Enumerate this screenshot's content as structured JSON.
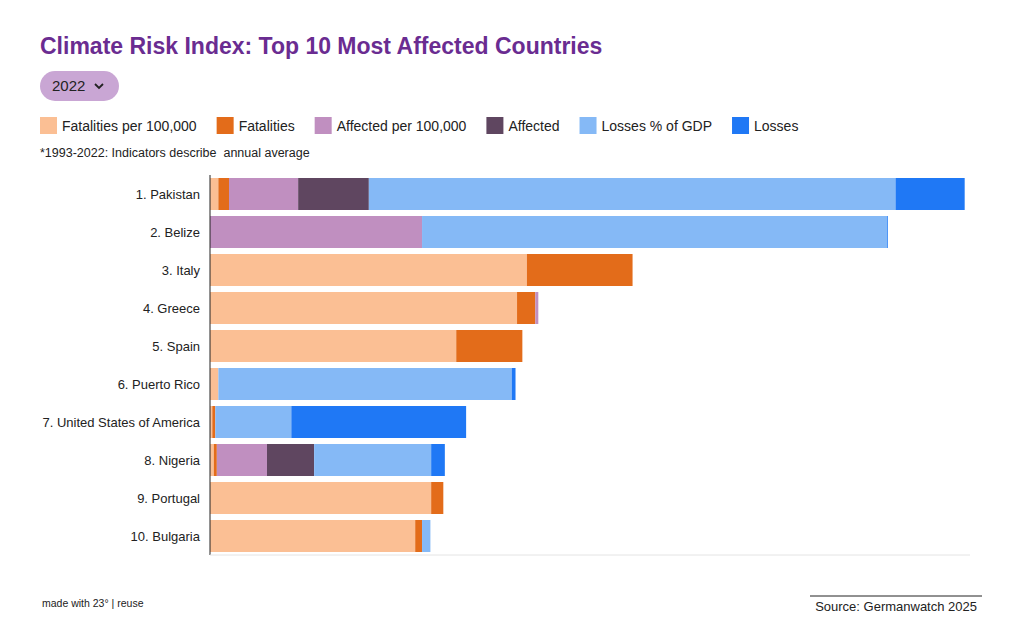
{
  "chart_data": {
    "type": "bar",
    "title": "Climate Risk Index: Top 10 Most Affected Countries",
    "dropdown": "2022",
    "note": "*1993-2022: Indicators describe  annual average",
    "footer": "made with 23° | reuse",
    "source": "Source: Germanwatch 2025",
    "orientation": "horizontal",
    "stacked": true,
    "legend": "top",
    "tick_labels": "y",
    "xlim": [
      0,
      100
    ],
    "categories": [
      "1. Pakistan",
      "2. Belize",
      "3. Italy",
      "4. Greece",
      "5. Spain",
      "6. Puerto Rico",
      "7. United States of America",
      "8. Nigeria",
      "9. Portugal",
      "10. Bulgaria"
    ],
    "series": [
      {
        "name": "Fatalities per 100,000",
        "color": "#fbbf94",
        "values": [
          1.1,
          0,
          41.7,
          40.4,
          32.4,
          1.1,
          0.3,
          0.5,
          29.1,
          27.0
        ]
      },
      {
        "name": "Fatalities",
        "color": "#e36c1a",
        "values": [
          1.4,
          0,
          13.9,
          2.4,
          8.7,
          0,
          0.4,
          0.4,
          1.6,
          0.9
        ]
      },
      {
        "name": "Affected per 100,000",
        "color": "#c08fc0",
        "values": [
          9.1,
          27.9,
          0,
          0.4,
          0,
          0,
          0,
          6.6,
          0,
          0
        ]
      },
      {
        "name": "Affected",
        "color": "#5f4660",
        "values": [
          9.3,
          0,
          0,
          0,
          0,
          0,
          0,
          6.2,
          0,
          0
        ]
      },
      {
        "name": "Losses % of GDP",
        "color": "#85b9f6",
        "values": [
          69.3,
          61.2,
          0,
          0,
          0,
          38.6,
          10.0,
          15.4,
          0,
          1.1
        ]
      },
      {
        "name": "Losses",
        "color": "#1f78f5",
        "values": [
          9.1,
          0.1,
          0,
          0,
          0,
          0.5,
          23.0,
          1.8,
          0,
          0
        ]
      }
    ]
  }
}
